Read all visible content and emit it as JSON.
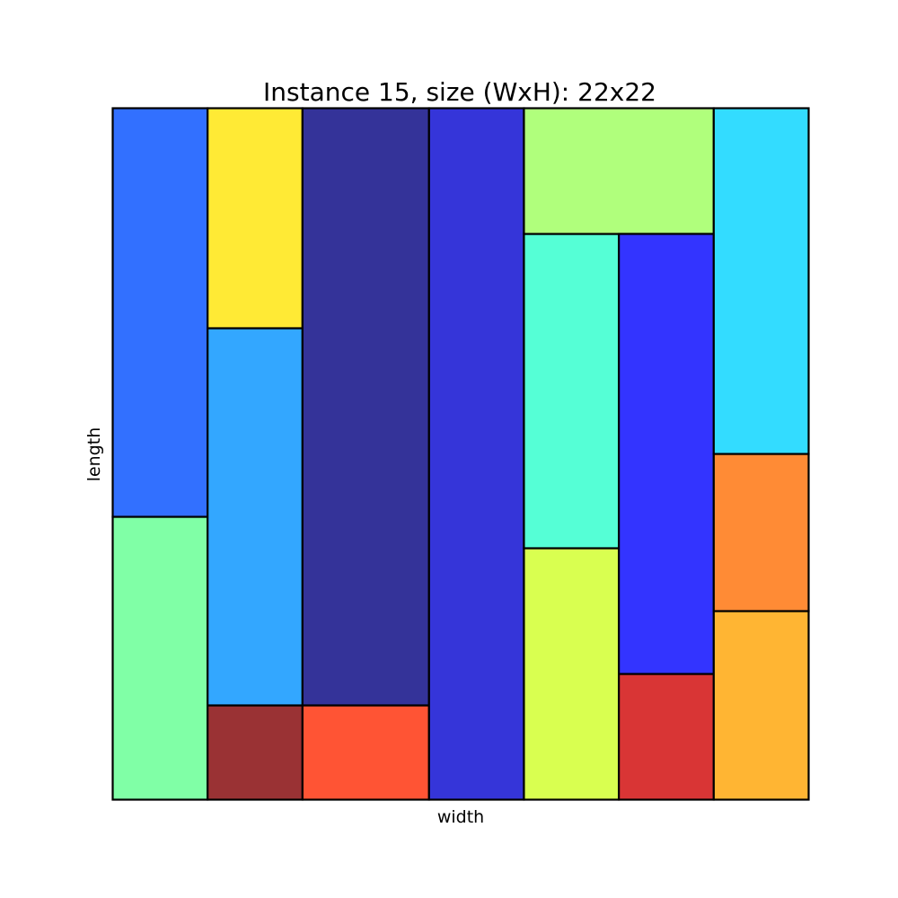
{
  "chart_data": {
    "type": "rectangle-packing",
    "title": "Instance 15, size (WxH): 22x22",
    "xlabel": "width",
    "ylabel": "length",
    "xlim": [
      0,
      22
    ],
    "ylim": [
      0,
      22
    ],
    "grid": false,
    "rectangles": [
      {
        "x": 0,
        "y": 0,
        "w": 3,
        "h": 9,
        "color": "#80ffa6"
      },
      {
        "x": 0,
        "y": 9,
        "w": 3,
        "h": 13,
        "color": "#3270ff"
      },
      {
        "x": 3,
        "y": 0,
        "w": 3,
        "h": 3,
        "color": "#9a3234"
      },
      {
        "x": 3,
        "y": 3,
        "w": 3,
        "h": 12,
        "color": "#33a7ff"
      },
      {
        "x": 3,
        "y": 15,
        "w": 3,
        "h": 7,
        "color": "#ffea35"
      },
      {
        "x": 6,
        "y": 0,
        "w": 4,
        "h": 3,
        "color": "#ff5434"
      },
      {
        "x": 6,
        "y": 3,
        "w": 4,
        "h": 19,
        "color": "#343399"
      },
      {
        "x": 10,
        "y": 0,
        "w": 3,
        "h": 22,
        "color": "#3535d9"
      },
      {
        "x": 13,
        "y": 0,
        "w": 3,
        "h": 8,
        "color": "#d9ff50"
      },
      {
        "x": 13,
        "y": 8,
        "w": 3,
        "h": 10,
        "color": "#55ffd6"
      },
      {
        "x": 13,
        "y": 18,
        "w": 6,
        "h": 4,
        "color": "#b0ff7c"
      },
      {
        "x": 16,
        "y": 0,
        "w": 3,
        "h": 4,
        "color": "#d93535"
      },
      {
        "x": 16,
        "y": 4,
        "w": 3,
        "h": 14,
        "color": "#3334ff"
      },
      {
        "x": 19,
        "y": 0,
        "w": 3,
        "h": 6,
        "color": "#ffb533"
      },
      {
        "x": 19,
        "y": 6,
        "w": 3,
        "h": 5,
        "color": "#ff8b35"
      },
      {
        "x": 19,
        "y": 11,
        "w": 3,
        "h": 11,
        "color": "#33dcff"
      }
    ]
  }
}
